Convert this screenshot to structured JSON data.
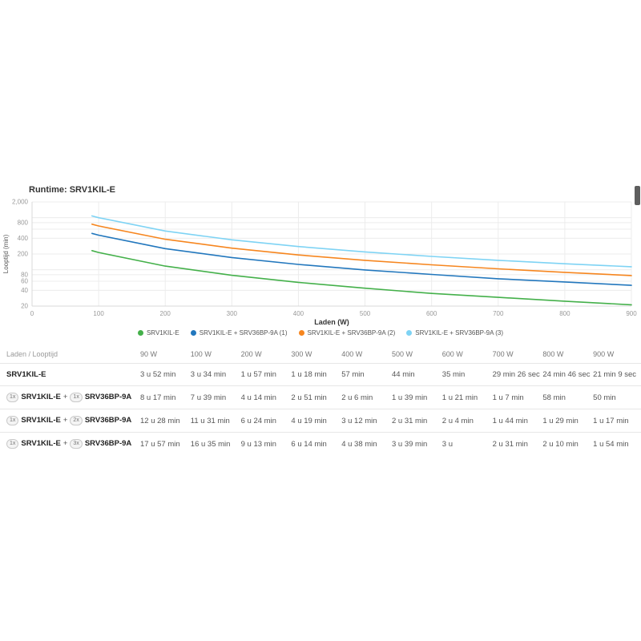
{
  "header": {
    "title": "Runtime: SRV1KIL-E"
  },
  "scrollbar": {
    "visible": true
  },
  "chart_data": {
    "type": "line",
    "title": "Runtime: SRV1KIL-E",
    "xlabel": "Laden (W)",
    "ylabel": "Looptijd (min)",
    "grid": true,
    "legend_position": "bottom",
    "y_scale": "log",
    "xlim": [
      0,
      900
    ],
    "ylim": [
      20,
      2000
    ],
    "xticks": [
      0,
      100,
      200,
      300,
      400,
      500,
      600,
      700,
      800,
      900
    ],
    "yticks": [
      2000,
      800,
      400,
      200,
      80,
      60,
      40,
      20
    ],
    "ytick_labels": [
      "2,000",
      "800",
      "400",
      "200",
      "80",
      "60",
      "40",
      "20"
    ],
    "y_gridlines": [
      20,
      40,
      60,
      80,
      100,
      200,
      400,
      600,
      800,
      1000,
      2000
    ],
    "x": [
      90,
      100,
      200,
      300,
      400,
      500,
      600,
      700,
      800,
      900
    ],
    "series": [
      {
        "name": "SRV1KIL-E",
        "color": "#44b04a",
        "values": [
          232,
          214,
          117,
          78,
          57,
          44,
          35,
          29.4,
          24.8,
          21.2
        ]
      },
      {
        "name": "SRV1KIL-E + SRV36BP-9A (1)",
        "color": "#2277bd",
        "values": [
          497,
          459,
          254,
          171,
          126,
          99,
          81,
          67,
          58,
          50
        ]
      },
      {
        "name": "SRV1KIL-E + SRV36BP-9A (2)",
        "color": "#f6861f",
        "values": [
          748,
          691,
          384,
          259,
          192,
          151,
          124,
          104,
          89,
          77
        ]
      },
      {
        "name": "SRV1KIL-E + SRV36BP-9A (3)",
        "color": "#7ed3f4",
        "values": [
          1077,
          995,
          553,
          374,
          278,
          219,
          180,
          151,
          130,
          114
        ]
      }
    ]
  },
  "table": {
    "corner": "Laden / Looptijd",
    "columns": [
      "90 W",
      "100 W",
      "200 W",
      "300 W",
      "400 W",
      "500 W",
      "600 W",
      "700 W",
      "800 W",
      "900 W"
    ],
    "rows": [
      {
        "badge1": null,
        "name1": "SRV1KIL-E",
        "plus": null,
        "badge2": null,
        "name2": null,
        "values": [
          "3 u 52 min",
          "3 u 34 min",
          "1 u 57 min",
          "1 u 18 min",
          "57 min",
          "44 min",
          "35 min",
          "29 min 26 sec",
          "24 min 46 sec",
          "21 min 9 sec"
        ]
      },
      {
        "badge1": "1x",
        "name1": "SRV1KIL-E",
        "plus": "+",
        "badge2": "1x",
        "name2": "SRV36BP-9A",
        "values": [
          "8 u 17 min",
          "7 u 39 min",
          "4 u 14 min",
          "2 u 51 min",
          "2 u 6 min",
          "1 u 39 min",
          "1 u 21 min",
          "1 u 7 min",
          "58 min",
          "50 min"
        ]
      },
      {
        "badge1": "1x",
        "name1": "SRV1KIL-E",
        "plus": "+",
        "badge2": "2x",
        "name2": "SRV36BP-9A",
        "values": [
          "12 u 28 min",
          "11 u 31 min",
          "6 u 24 min",
          "4 u 19 min",
          "3 u 12 min",
          "2 u 31 min",
          "2 u 4 min",
          "1 u 44 min",
          "1 u 29 min",
          "1 u 17 min"
        ]
      },
      {
        "badge1": "1x",
        "name1": "SRV1KIL-E",
        "plus": "+",
        "badge2": "3x",
        "name2": "SRV36BP-9A",
        "values": [
          "17 u 57 min",
          "16 u 35 min",
          "9 u 13 min",
          "6 u 14 min",
          "4 u 38 min",
          "3 u 39 min",
          "3 u",
          "2 u 31 min",
          "2 u 10 min",
          "1 u 54 min"
        ]
      }
    ]
  }
}
